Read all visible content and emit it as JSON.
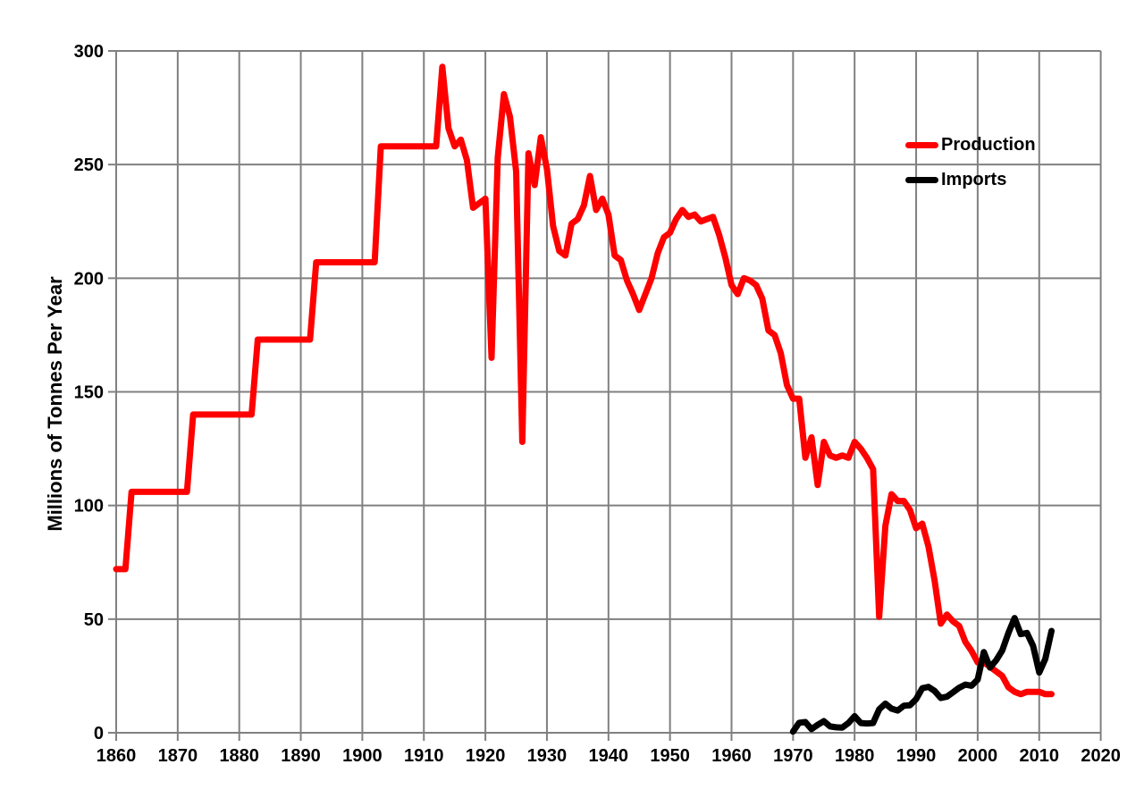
{
  "chart_data": {
    "type": "line",
    "title": "",
    "xlabel": "",
    "ylabel": "Millions of Tonnes Per Year",
    "xlim": [
      1860,
      2020
    ],
    "ylim": [
      0,
      300
    ],
    "x_ticks": [
      1860,
      1870,
      1880,
      1890,
      1900,
      1910,
      1920,
      1930,
      1940,
      1950,
      1960,
      1970,
      1980,
      1990,
      2000,
      2010,
      2020
    ],
    "y_ticks": [
      0,
      50,
      100,
      150,
      200,
      250,
      300
    ],
    "grid": true,
    "grid_color": "#808080",
    "background_color": "#FFFFFF",
    "axis_text_color": "#000000",
    "legend": {
      "position": "inside-top-right",
      "items": [
        {
          "label": "Production",
          "color": "#FF0000"
        },
        {
          "label": "Imports",
          "color": "#000000"
        }
      ]
    },
    "series": [
      {
        "name": "Production",
        "color": "#FF0000",
        "width": 7,
        "points": [
          [
            1860,
            72
          ],
          [
            1861.5,
            72
          ],
          [
            1862.5,
            106
          ],
          [
            1871.5,
            106
          ],
          [
            1872.5,
            140
          ],
          [
            1882,
            140
          ],
          [
            1883,
            173
          ],
          [
            1891.5,
            173
          ],
          [
            1892.5,
            207
          ],
          [
            1902,
            207
          ],
          [
            1903,
            258
          ],
          [
            1912,
            258
          ],
          [
            1913,
            293
          ],
          [
            1914,
            266
          ],
          [
            1915,
            258
          ],
          [
            1916,
            261
          ],
          [
            1917,
            252
          ],
          [
            1918,
            231
          ],
          [
            1919,
            233
          ],
          [
            1920,
            235
          ],
          [
            1921,
            165
          ],
          [
            1922,
            253
          ],
          [
            1923,
            281
          ],
          [
            1924,
            271
          ],
          [
            1925,
            247
          ],
          [
            1926,
            128
          ],
          [
            1927,
            255
          ],
          [
            1928,
            241
          ],
          [
            1929,
            262
          ],
          [
            1930,
            248
          ],
          [
            1931,
            223
          ],
          [
            1932,
            212
          ],
          [
            1933,
            210
          ],
          [
            1934,
            224
          ],
          [
            1935,
            226
          ],
          [
            1936,
            232
          ],
          [
            1937,
            245
          ],
          [
            1938,
            230
          ],
          [
            1939,
            235
          ],
          [
            1940,
            228
          ],
          [
            1941,
            210
          ],
          [
            1942,
            208
          ],
          [
            1943,
            199
          ],
          [
            1944,
            193
          ],
          [
            1945,
            186
          ],
          [
            1946,
            193
          ],
          [
            1947,
            200
          ],
          [
            1948,
            211
          ],
          [
            1949,
            218
          ],
          [
            1950,
            220
          ],
          [
            1951,
            226
          ],
          [
            1952,
            230
          ],
          [
            1953,
            227
          ],
          [
            1954,
            228
          ],
          [
            1955,
            225
          ],
          [
            1956,
            226
          ],
          [
            1957,
            227
          ],
          [
            1958,
            219
          ],
          [
            1959,
            209
          ],
          [
            1960,
            197
          ],
          [
            1961,
            193
          ],
          [
            1962,
            200
          ],
          [
            1963,
            199
          ],
          [
            1964,
            197
          ],
          [
            1965,
            191
          ],
          [
            1966,
            177
          ],
          [
            1967,
            175
          ],
          [
            1968,
            167
          ],
          [
            1969,
            153
          ],
          [
            1970,
            147
          ],
          [
            1971,
            147
          ],
          [
            1972,
            121
          ],
          [
            1973,
            130
          ],
          [
            1974,
            109
          ],
          [
            1975,
            128
          ],
          [
            1976,
            122
          ],
          [
            1977,
            121
          ],
          [
            1978,
            122
          ],
          [
            1979,
            121
          ],
          [
            1980,
            128
          ],
          [
            1981,
            125
          ],
          [
            1982,
            121
          ],
          [
            1983,
            116
          ],
          [
            1984,
            51
          ],
          [
            1985,
            91
          ],
          [
            1986,
            105
          ],
          [
            1987,
            102
          ],
          [
            1988,
            102
          ],
          [
            1989,
            98
          ],
          [
            1990,
            90
          ],
          [
            1991,
            92
          ],
          [
            1992,
            82
          ],
          [
            1993,
            67
          ],
          [
            1994,
            48
          ],
          [
            1995,
            52
          ],
          [
            1996,
            49
          ],
          [
            1997,
            47
          ],
          [
            1998,
            40
          ],
          [
            1999,
            36
          ],
          [
            2000,
            31
          ],
          [
            2001,
            31
          ],
          [
            2002,
            29
          ],
          [
            2003,
            27
          ],
          [
            2004,
            25
          ],
          [
            2005,
            20
          ],
          [
            2006,
            18
          ],
          [
            2007,
            17
          ],
          [
            2008,
            18
          ],
          [
            2009,
            18
          ],
          [
            2010,
            18
          ],
          [
            2011,
            17
          ],
          [
            2012,
            17
          ]
        ]
      },
      {
        "name": "Imports",
        "color": "#000000",
        "width": 7,
        "points": [
          [
            1970,
            0.5
          ],
          [
            1971,
            4.4
          ],
          [
            1972,
            4.7
          ],
          [
            1973,
            1.6
          ],
          [
            1974,
            3.5
          ],
          [
            1975,
            5.1
          ],
          [
            1976,
            2.8
          ],
          [
            1977,
            2.4
          ],
          [
            1978,
            2.3
          ],
          [
            1979,
            4.3
          ],
          [
            1980,
            7.3
          ],
          [
            1981,
            4.3
          ],
          [
            1982,
            4.1
          ],
          [
            1983,
            4.3
          ],
          [
            1984,
            10.3
          ],
          [
            1985,
            12.8
          ],
          [
            1986,
            10.6
          ],
          [
            1987,
            9.8
          ],
          [
            1988,
            11.9
          ],
          [
            1989,
            12.1
          ],
          [
            1990,
            14.8
          ],
          [
            1991,
            19.6
          ],
          [
            1992,
            20.2
          ],
          [
            1993,
            18.4
          ],
          [
            1994,
            15.3
          ],
          [
            1995,
            15.9
          ],
          [
            1996,
            17.8
          ],
          [
            1997,
            19.8
          ],
          [
            1998,
            21.2
          ],
          [
            1999,
            20.7
          ],
          [
            2000,
            23.4
          ],
          [
            2001,
            35.5
          ],
          [
            2002,
            28.7
          ],
          [
            2003,
            31.9
          ],
          [
            2004,
            36.2
          ],
          [
            2005,
            43.9
          ],
          [
            2006,
            50.5
          ],
          [
            2007,
            43.4
          ],
          [
            2008,
            43.9
          ],
          [
            2009,
            38.2
          ],
          [
            2010,
            26.5
          ],
          [
            2011,
            32.5
          ],
          [
            2012,
            44.8
          ]
        ]
      }
    ]
  }
}
